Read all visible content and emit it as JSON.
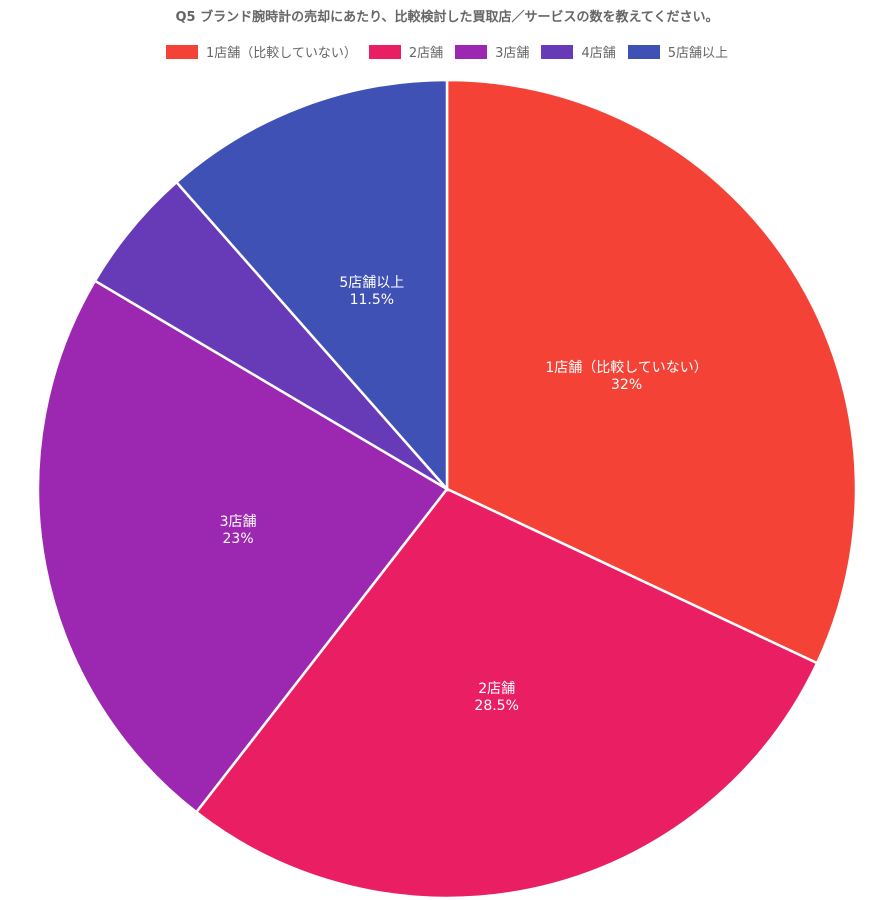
{
  "chart_data": {
    "type": "pie",
    "title": "Q5 ブランド腕時計の売却にあたり、比較検討した買取店／サービスの数を教えてください。",
    "legend_position": "top",
    "categories": [
      "1店舗（比較していない）",
      "2店舗",
      "3店舗",
      "4店舗",
      "5店舗以上"
    ],
    "values": [
      32,
      28.5,
      23,
      5,
      11.5
    ],
    "unit": "%",
    "data_labels": [
      {
        "category": "1店舗（比較していない）",
        "value": "32%"
      },
      {
        "category": "2店舗",
        "value": "28.5%"
      },
      {
        "category": "3店舗",
        "value": "23%"
      },
      {
        "category": "4店舗",
        "value": ""
      },
      {
        "category": "5店舗以上",
        "value": "11.5%"
      }
    ],
    "colors": [
      "#f44336",
      "#e91e63",
      "#9c27b0",
      "#673ab7",
      "#3f51b5"
    ]
  }
}
